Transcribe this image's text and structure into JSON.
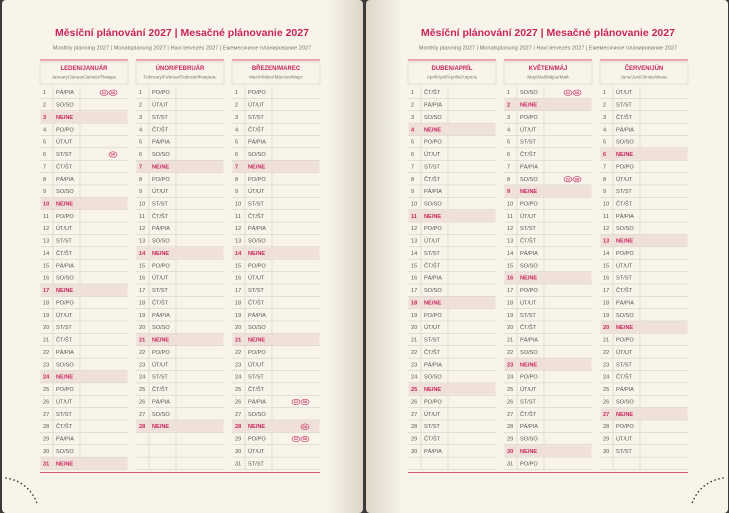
{
  "pages": [
    {
      "title": "Měsíční plánování 2027 | Mesačné plánovanie 2027",
      "subtitle": "Monthly planning 2027 | Monatsplanung 2027 | Havi tervezés 2027 | Ежемесячное планирование 2027",
      "months": [
        {
          "name": "LEDEN/JANUÁR",
          "subname": "January/Januar/Janvier/Январь",
          "days": [
            {
              "n": 1,
              "d": "PÁ/PIA",
              "icons": [
                "CZ",
                "SK"
              ]
            },
            {
              "n": 2,
              "d": "SO/SO"
            },
            {
              "n": 3,
              "d": "NE/NE",
              "red": true
            },
            {
              "n": 4,
              "d": "PO/PO"
            },
            {
              "n": 5,
              "d": "ÚT/UT"
            },
            {
              "n": 6,
              "d": "ST/ST",
              "icons": [
                "SK"
              ]
            },
            {
              "n": 7,
              "d": "ČT/ŠT"
            },
            {
              "n": 8,
              "d": "PÁ/PIA"
            },
            {
              "n": 9,
              "d": "SO/SO"
            },
            {
              "n": 10,
              "d": "NE/NE",
              "red": true
            },
            {
              "n": 11,
              "d": "PO/PO"
            },
            {
              "n": 12,
              "d": "ÚT/UT"
            },
            {
              "n": 13,
              "d": "ST/ST"
            },
            {
              "n": 14,
              "d": "ČT/ŠT"
            },
            {
              "n": 15,
              "d": "PÁ/PIA"
            },
            {
              "n": 16,
              "d": "SO/SO"
            },
            {
              "n": 17,
              "d": "NE/NE",
              "red": true
            },
            {
              "n": 18,
              "d": "PO/PO"
            },
            {
              "n": 19,
              "d": "ÚT/UT"
            },
            {
              "n": 20,
              "d": "ST/ST"
            },
            {
              "n": 21,
              "d": "ČT/ŠT"
            },
            {
              "n": 22,
              "d": "PÁ/PIA"
            },
            {
              "n": 23,
              "d": "SO/SO"
            },
            {
              "n": 24,
              "d": "NE/NE",
              "red": true
            },
            {
              "n": 25,
              "d": "PO/PO"
            },
            {
              "n": 26,
              "d": "ÚT/UT"
            },
            {
              "n": 27,
              "d": "ST/ST"
            },
            {
              "n": 28,
              "d": "ČT/ŠT"
            },
            {
              "n": 29,
              "d": "PÁ/PIA"
            },
            {
              "n": 30,
              "d": "SO/SO"
            },
            {
              "n": 31,
              "d": "NE/NE",
              "red": true
            }
          ]
        },
        {
          "name": "ÚNOR/FEBRUÁR",
          "subname": "February/Februar/Február/Февраль",
          "days": [
            {
              "n": 1,
              "d": "PO/PO"
            },
            {
              "n": 2,
              "d": "ÚT/UT"
            },
            {
              "n": 3,
              "d": "ST/ST"
            },
            {
              "n": 4,
              "d": "ČT/ŠT"
            },
            {
              "n": 5,
              "d": "PÁ/PIA"
            },
            {
              "n": 6,
              "d": "SO/SO"
            },
            {
              "n": 7,
              "d": "NE/NE",
              "red": true
            },
            {
              "n": 8,
              "d": "PO/PO"
            },
            {
              "n": 9,
              "d": "ÚT/UT"
            },
            {
              "n": 10,
              "d": "ST/ST"
            },
            {
              "n": 11,
              "d": "ČT/ŠT"
            },
            {
              "n": 12,
              "d": "PÁ/PIA"
            },
            {
              "n": 13,
              "d": "SO/SO"
            },
            {
              "n": 14,
              "d": "NE/NE",
              "red": true
            },
            {
              "n": 15,
              "d": "PO/PO"
            },
            {
              "n": 16,
              "d": "ÚT/UT"
            },
            {
              "n": 17,
              "d": "ST/ST"
            },
            {
              "n": 18,
              "d": "ČT/ŠT"
            },
            {
              "n": 19,
              "d": "PÁ/PIA"
            },
            {
              "n": 20,
              "d": "SO/SO"
            },
            {
              "n": 21,
              "d": "NE/NE",
              "red": true
            },
            {
              "n": 22,
              "d": "PO/PO"
            },
            {
              "n": 23,
              "d": "ÚT/UT"
            },
            {
              "n": 24,
              "d": "ST/ST"
            },
            {
              "n": 25,
              "d": "ČT/ŠT"
            },
            {
              "n": 26,
              "d": "PÁ/PIA"
            },
            {
              "n": 27,
              "d": "SO/SO"
            },
            {
              "n": 28,
              "d": "NE/NE",
              "red": true
            }
          ]
        },
        {
          "name": "BŘEZEN/MAREC",
          "subname": "March/März/Március/Март",
          "days": [
            {
              "n": 1,
              "d": "PO/PO"
            },
            {
              "n": 2,
              "d": "ÚT/UT"
            },
            {
              "n": 3,
              "d": "ST/ST"
            },
            {
              "n": 4,
              "d": "ČT/ŠT"
            },
            {
              "n": 5,
              "d": "PÁ/PIA"
            },
            {
              "n": 6,
              "d": "SO/SO"
            },
            {
              "n": 7,
              "d": "NE/NE",
              "red": true
            },
            {
              "n": 8,
              "d": "PO/PO"
            },
            {
              "n": 9,
              "d": "ÚT/UT"
            },
            {
              "n": 10,
              "d": "ST/ST"
            },
            {
              "n": 11,
              "d": "ČT/ŠT"
            },
            {
              "n": 12,
              "d": "PÁ/PIA"
            },
            {
              "n": 13,
              "d": "SO/SO"
            },
            {
              "n": 14,
              "d": "NE/NE",
              "red": true
            },
            {
              "n": 15,
              "d": "PO/PO"
            },
            {
              "n": 16,
              "d": "ÚT/UT"
            },
            {
              "n": 17,
              "d": "ST/ST"
            },
            {
              "n": 18,
              "d": "ČT/ŠT"
            },
            {
              "n": 19,
              "d": "PÁ/PIA"
            },
            {
              "n": 20,
              "d": "SO/SO"
            },
            {
              "n": 21,
              "d": "NE/NE",
              "red": true
            },
            {
              "n": 22,
              "d": "PO/PO"
            },
            {
              "n": 23,
              "d": "ÚT/UT"
            },
            {
              "n": 24,
              "d": "ST/ST"
            },
            {
              "n": 25,
              "d": "ČT/ŠT"
            },
            {
              "n": 26,
              "d": "PÁ/PIA",
              "icons": [
                "CZ",
                "SK"
              ]
            },
            {
              "n": 27,
              "d": "SO/SO"
            },
            {
              "n": 28,
              "d": "NE/NE",
              "red": true,
              "icons": [
                "SK"
              ]
            },
            {
              "n": 29,
              "d": "PO/PO",
              "icons": [
                "CZ",
                "SK"
              ]
            },
            {
              "n": 30,
              "d": "ÚT/UT"
            },
            {
              "n": 31,
              "d": "ST/ST"
            }
          ]
        }
      ]
    },
    {
      "title": "Měsíční plánování 2027 | Mesačné plánovanie 2027",
      "subtitle": "Monthly planning 2027 | Monatsplanung 2027 | Havi tervezés 2027 | Ежемесячное планирование 2027",
      "months": [
        {
          "name": "DUBEN/APRÍL",
          "subname": "April/April/Április/Апрель",
          "days": [
            {
              "n": 1,
              "d": "ČT/ŠT"
            },
            {
              "n": 2,
              "d": "PÁ/PIA"
            },
            {
              "n": 3,
              "d": "SO/SO"
            },
            {
              "n": 4,
              "d": "NE/NE",
              "red": true
            },
            {
              "n": 5,
              "d": "PO/PO"
            },
            {
              "n": 6,
              "d": "ÚT/UT"
            },
            {
              "n": 7,
              "d": "ST/ST"
            },
            {
              "n": 8,
              "d": "ČT/ŠT"
            },
            {
              "n": 9,
              "d": "PÁ/PIA"
            },
            {
              "n": 10,
              "d": "SO/SO"
            },
            {
              "n": 11,
              "d": "NE/NE",
              "red": true
            },
            {
              "n": 12,
              "d": "PO/PO"
            },
            {
              "n": 13,
              "d": "ÚT/UT"
            },
            {
              "n": 14,
              "d": "ST/ST"
            },
            {
              "n": 15,
              "d": "ČT/ŠT"
            },
            {
              "n": 16,
              "d": "PÁ/PIA"
            },
            {
              "n": 17,
              "d": "SO/SO"
            },
            {
              "n": 18,
              "d": "NE/NE",
              "red": true
            },
            {
              "n": 19,
              "d": "PO/PO"
            },
            {
              "n": 20,
              "d": "ÚT/UT"
            },
            {
              "n": 21,
              "d": "ST/ST"
            },
            {
              "n": 22,
              "d": "ČT/ŠT"
            },
            {
              "n": 23,
              "d": "PÁ/PIA"
            },
            {
              "n": 24,
              "d": "SO/SO"
            },
            {
              "n": 25,
              "d": "NE/NE",
              "red": true
            },
            {
              "n": 26,
              "d": "PO/PO"
            },
            {
              "n": 27,
              "d": "ÚT/UT"
            },
            {
              "n": 28,
              "d": "ST/ST"
            },
            {
              "n": 29,
              "d": "ČT/ŠT"
            },
            {
              "n": 30,
              "d": "PÁ/PIA"
            }
          ]
        },
        {
          "name": "KVĚTEN/MÁJ",
          "subname": "May/Mai/Május/Май",
          "days": [
            {
              "n": 1,
              "d": "SO/SO",
              "icons": [
                "CZ",
                "SK"
              ]
            },
            {
              "n": 2,
              "d": "NE/NE",
              "red": true
            },
            {
              "n": 3,
              "d": "PO/PO"
            },
            {
              "n": 4,
              "d": "ÚT/UT"
            },
            {
              "n": 5,
              "d": "ST/ST"
            },
            {
              "n": 6,
              "d": "ČT/ŠT"
            },
            {
              "n": 7,
              "d": "PÁ/PIA"
            },
            {
              "n": 8,
              "d": "SO/SO",
              "icons": [
                "CZ",
                "SK"
              ]
            },
            {
              "n": 9,
              "d": "NE/NE",
              "red": true
            },
            {
              "n": 10,
              "d": "PO/PO"
            },
            {
              "n": 11,
              "d": "ÚT/UT"
            },
            {
              "n": 12,
              "d": "ST/ST"
            },
            {
              "n": 13,
              "d": "ČT/ŠT"
            },
            {
              "n": 14,
              "d": "PÁ/PIA"
            },
            {
              "n": 15,
              "d": "SO/SO"
            },
            {
              "n": 16,
              "d": "NE/NE",
              "red": true
            },
            {
              "n": 17,
              "d": "PO/PO"
            },
            {
              "n": 18,
              "d": "ÚT/UT"
            },
            {
              "n": 19,
              "d": "ST/ST"
            },
            {
              "n": 20,
              "d": "ČT/ŠT"
            },
            {
              "n": 21,
              "d": "PÁ/PIA"
            },
            {
              "n": 22,
              "d": "SO/SO"
            },
            {
              "n": 23,
              "d": "NE/NE",
              "red": true
            },
            {
              "n": 24,
              "d": "PO/PO"
            },
            {
              "n": 25,
              "d": "ÚT/UT"
            },
            {
              "n": 26,
              "d": "ST/ST"
            },
            {
              "n": 27,
              "d": "ČT/ŠT"
            },
            {
              "n": 28,
              "d": "PÁ/PIA"
            },
            {
              "n": 29,
              "d": "SO/SO"
            },
            {
              "n": 30,
              "d": "NE/NE",
              "red": true
            },
            {
              "n": 31,
              "d": "PO/PO"
            }
          ]
        },
        {
          "name": "ČERVEN/JÚN",
          "subname": "June/Juni/Június/Июнь",
          "days": [
            {
              "n": 1,
              "d": "ÚT/UT"
            },
            {
              "n": 2,
              "d": "ST/ST"
            },
            {
              "n": 3,
              "d": "ČT/ŠT"
            },
            {
              "n": 4,
              "d": "PÁ/PIA"
            },
            {
              "n": 5,
              "d": "SO/SO"
            },
            {
              "n": 6,
              "d": "NE/NE",
              "red": true
            },
            {
              "n": 7,
              "d": "PO/PO"
            },
            {
              "n": 8,
              "d": "ÚT/UT"
            },
            {
              "n": 9,
              "d": "ST/ST"
            },
            {
              "n": 10,
              "d": "ČT/ŠT"
            },
            {
              "n": 11,
              "d": "PÁ/PIA"
            },
            {
              "n": 12,
              "d": "SO/SO"
            },
            {
              "n": 13,
              "d": "NE/NE",
              "red": true
            },
            {
              "n": 14,
              "d": "PO/PO"
            },
            {
              "n": 15,
              "d": "ÚT/UT"
            },
            {
              "n": 16,
              "d": "ST/ST"
            },
            {
              "n": 17,
              "d": "ČT/ŠT"
            },
            {
              "n": 18,
              "d": "PÁ/PIA"
            },
            {
              "n": 19,
              "d": "SO/SO"
            },
            {
              "n": 20,
              "d": "NE/NE",
              "red": true
            },
            {
              "n": 21,
              "d": "PO/PO"
            },
            {
              "n": 22,
              "d": "ÚT/UT"
            },
            {
              "n": 23,
              "d": "ST/ST"
            },
            {
              "n": 24,
              "d": "ČT/ŠT"
            },
            {
              "n": 25,
              "d": "PÁ/PIA"
            },
            {
              "n": 26,
              "d": "SO/SO"
            },
            {
              "n": 27,
              "d": "NE/NE",
              "red": true
            },
            {
              "n": 28,
              "d": "PO/PO"
            },
            {
              "n": 29,
              "d": "ÚT/UT"
            },
            {
              "n": 30,
              "d": "ST/ST"
            }
          ]
        }
      ]
    }
  ]
}
